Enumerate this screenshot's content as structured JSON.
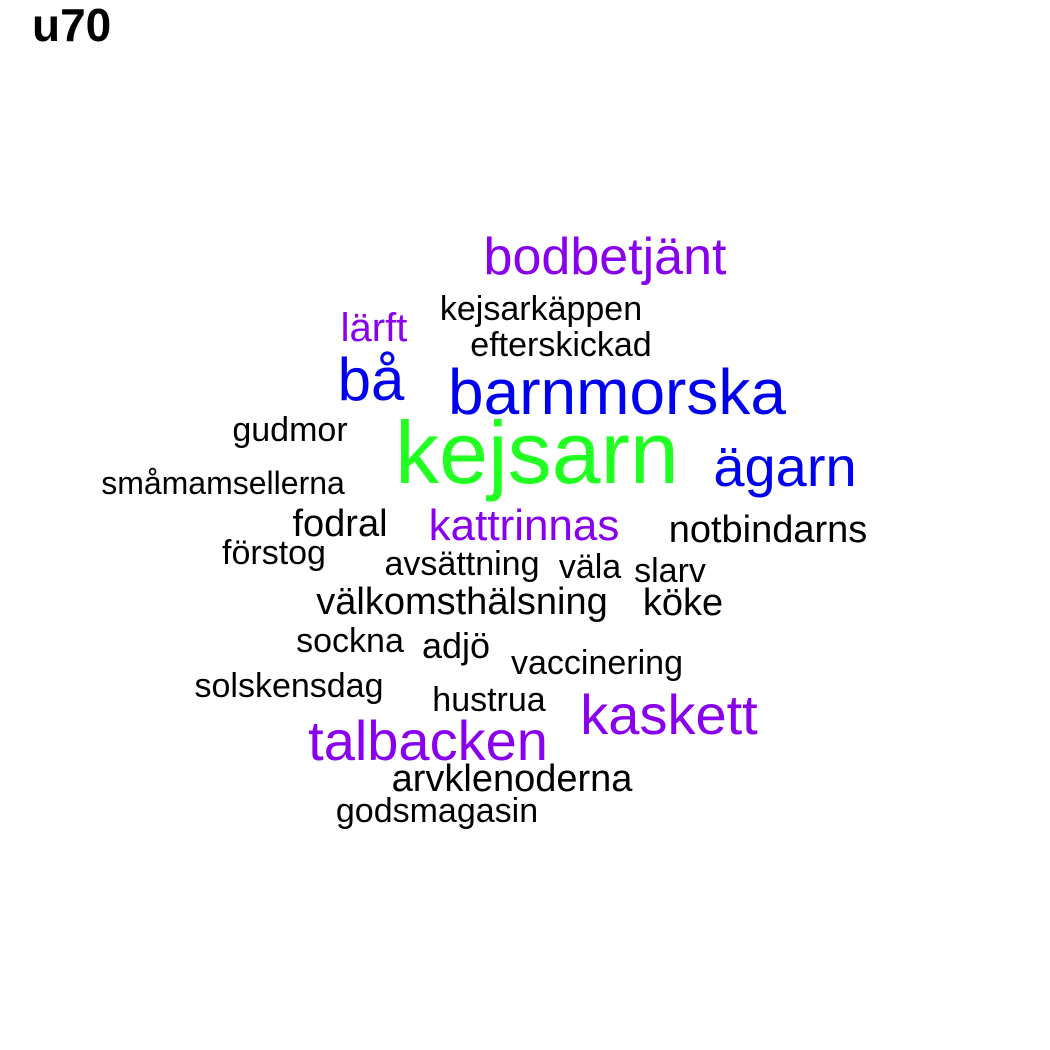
{
  "title": "u70",
  "palette": {
    "green": "#22ff22",
    "blue": "#0000ee",
    "purple": "#8800ee",
    "black": "#000000"
  },
  "words": [
    {
      "text": "bodbetjänt",
      "color": "purple",
      "weight": 3
    },
    {
      "text": "kejsarkäppen",
      "color": "black",
      "weight": 1
    },
    {
      "text": "lärft",
      "color": "purple",
      "weight": 2
    },
    {
      "text": "efterskickad",
      "color": "black",
      "weight": 1
    },
    {
      "text": "bå",
      "color": "blue",
      "weight": 4
    },
    {
      "text": "barnmorska",
      "color": "blue",
      "weight": 4
    },
    {
      "text": "gudmor",
      "color": "black",
      "weight": 1
    },
    {
      "text": "kejsarn",
      "color": "green",
      "weight": 5
    },
    {
      "text": "ägarn",
      "color": "blue",
      "weight": 3
    },
    {
      "text": "småmamsellerna",
      "color": "black",
      "weight": 1
    },
    {
      "text": "fodral",
      "color": "black",
      "weight": 1
    },
    {
      "text": "kattrinnas",
      "color": "purple",
      "weight": 2
    },
    {
      "text": "notbindarns",
      "color": "black",
      "weight": 1
    },
    {
      "text": "förstog",
      "color": "black",
      "weight": 1
    },
    {
      "text": "avsättning",
      "color": "black",
      "weight": 1
    },
    {
      "text": "väla",
      "color": "black",
      "weight": 1
    },
    {
      "text": "slarv",
      "color": "black",
      "weight": 1
    },
    {
      "text": "välkomsthälsning",
      "color": "black",
      "weight": 1
    },
    {
      "text": "köke",
      "color": "black",
      "weight": 1
    },
    {
      "text": "sockna",
      "color": "black",
      "weight": 1
    },
    {
      "text": "adjö",
      "color": "black",
      "weight": 1
    },
    {
      "text": "vaccinering",
      "color": "black",
      "weight": 1
    },
    {
      "text": "solskensdag",
      "color": "black",
      "weight": 1
    },
    {
      "text": "hustrua",
      "color": "black",
      "weight": 1
    },
    {
      "text": "kaskett",
      "color": "purple",
      "weight": 3
    },
    {
      "text": "talbacken",
      "color": "purple",
      "weight": 3
    },
    {
      "text": "arvklenoderna",
      "color": "black",
      "weight": 1
    },
    {
      "text": "godsmagasin",
      "color": "black",
      "weight": 1
    }
  ]
}
